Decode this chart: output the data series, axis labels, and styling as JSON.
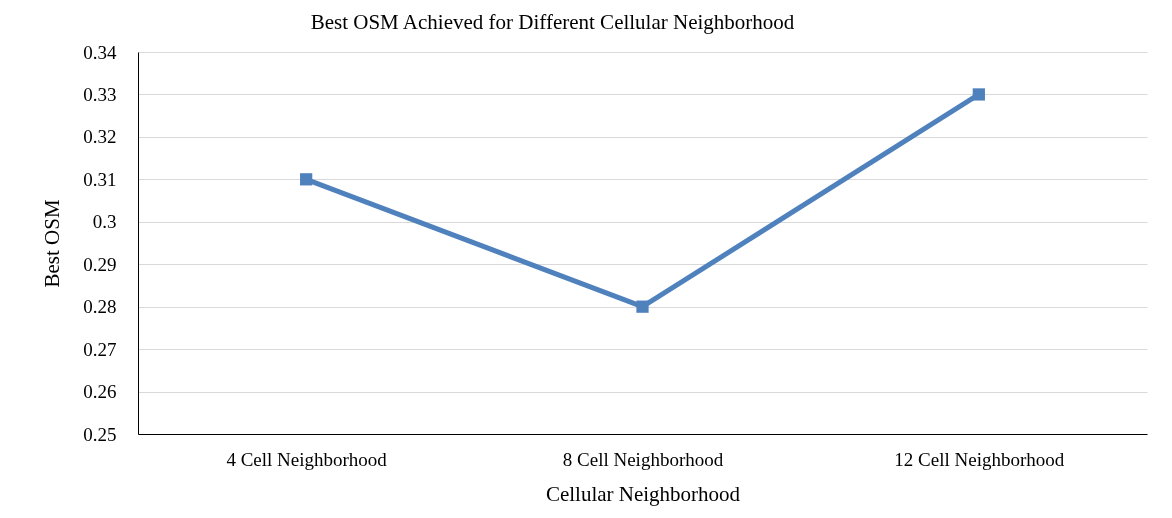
{
  "chart_data": {
    "type": "line",
    "title": "Best OSM Achieved for Different Cellular Neighborhood",
    "xlabel": "Cellular Neighborhood",
    "ylabel": "Best OSM",
    "categories": [
      "4 Cell Neighborhood",
      "8 Cell Neighborhood",
      "12 Cell Neighborhood"
    ],
    "series": [
      {
        "color": "#4f81bd",
        "values": [
          0.31,
          0.28,
          0.33
        ]
      }
    ],
    "ylim": [
      0.25,
      0.34
    ],
    "yticks": [
      0.25,
      0.26,
      0.27,
      0.28,
      0.29,
      0.3,
      0.31,
      0.32,
      0.33,
      0.34
    ],
    "grid": "y",
    "marker": "square",
    "line_style": "solid"
  }
}
